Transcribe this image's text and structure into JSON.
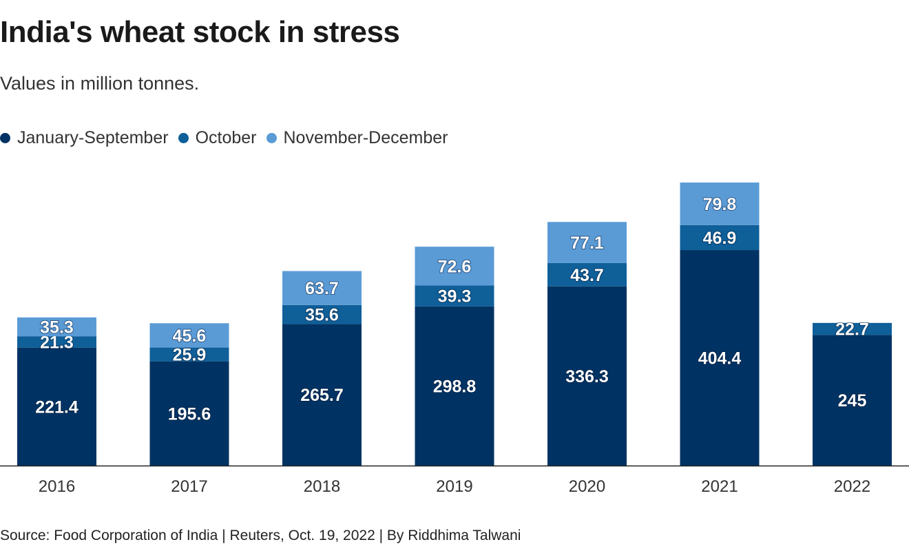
{
  "chart_data": {
    "type": "bar",
    "stacked": true,
    "title": "India's wheat stock in stress",
    "subtitle": "Values in million tonnes.",
    "categories": [
      "2016",
      "2017",
      "2018",
      "2019",
      "2020",
      "2021",
      "2022"
    ],
    "series": [
      {
        "name": "January-September",
        "color": "#003363",
        "values": [
          221.4,
          195.6,
          265.7,
          298.8,
          336.3,
          404.4,
          245
        ]
      },
      {
        "name": "October",
        "color": "#0f5f99",
        "values": [
          21.3,
          25.9,
          35.6,
          39.3,
          43.7,
          46.9,
          22.7
        ]
      },
      {
        "name": "November-December",
        "color": "#5a9bd6",
        "values": [
          35.3,
          45.6,
          63.7,
          72.6,
          77.1,
          79.8,
          null
        ]
      }
    ],
    "data_labels": true,
    "legend_position": "top-left",
    "grid": false,
    "ylim": [
      0,
      531.1
    ],
    "source": "Source: Food Corporation of India | Reuters, Oct. 19, 2022 | By Riddhima Talwani"
  }
}
